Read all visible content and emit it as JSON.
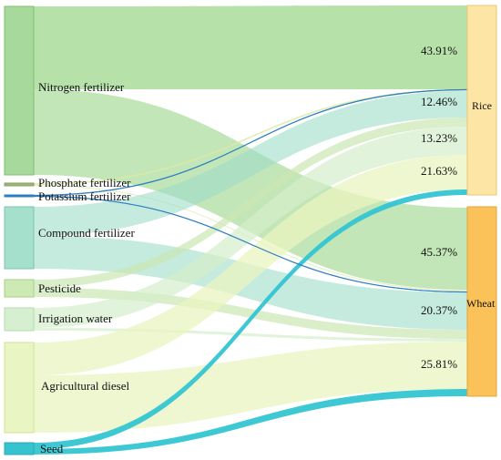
{
  "sources": [
    {
      "id": "nitrogen",
      "label": "Nitrogen fertilizer",
      "fill": "#a8d99c",
      "stroke": "#7cbf6e",
      "flow": "#a9dc9a"
    },
    {
      "id": "phosphate",
      "label": "Phosphate fertilizer",
      "fill": "#9fb57a",
      "stroke": "#8aa064",
      "flow": "#d9e9a6"
    },
    {
      "id": "potassium",
      "label": "Potassium fertilizer",
      "fill": "#2f7fc0",
      "stroke": "#2f7fc0",
      "flow": "#3a8fcf"
    },
    {
      "id": "compound",
      "label": "Compound fertilizer",
      "fill": "#a4e0cc",
      "stroke": "#7cc4ab",
      "flow": "#9fdcc8"
    },
    {
      "id": "pesticide",
      "label": "Pesticide",
      "fill": "#cdeab4",
      "stroke": "#a6d08a",
      "flow": "#cbe7b3"
    },
    {
      "id": "irrigation",
      "label": "Irrigation water",
      "fill": "#d6efd0",
      "stroke": "#b3dcaa",
      "flow": "#d4eecb"
    },
    {
      "id": "diesel",
      "label": "Agricultural diesel",
      "fill": "#eaf5c4",
      "stroke": "#cfe29a",
      "flow": "#e9f4c0"
    },
    {
      "id": "seed",
      "label": "Seed",
      "fill": "#35c3cf",
      "stroke": "#2aa8b4",
      "flow": "#33c5d2"
    }
  ],
  "targets": [
    {
      "id": "rice",
      "label": "Rice",
      "fill": "#fde5a6",
      "stroke": "#eac774"
    },
    {
      "id": "wheat",
      "label": "Wheat",
      "fill": "#fbc25a",
      "stroke": "#e2a73d"
    }
  ],
  "percentages": {
    "rice": [
      "43.91%",
      "12.46%",
      "13.23%",
      "21.63%"
    ],
    "wheat": [
      "45.37%",
      "20.37%",
      "25.81%"
    ]
  }
}
